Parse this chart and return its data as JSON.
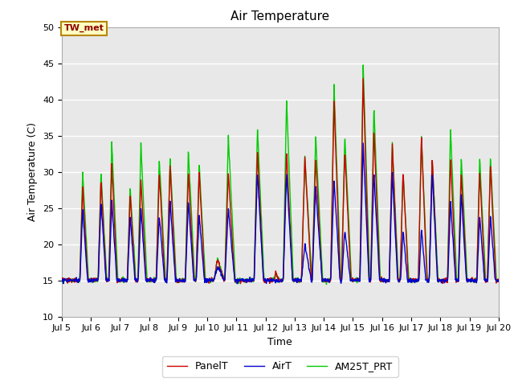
{
  "title": "Air Temperature",
  "xlabel": "Time",
  "ylabel": "Air Temperature (C)",
  "ylim": [
    10,
    50
  ],
  "xlim_days": [
    5,
    20
  ],
  "annotation_text": "TW_met",
  "annotation_color": "#8B0000",
  "annotation_bg": "#FFFFC0",
  "annotation_border": "#B8860B",
  "bg_color": "#E8E8E8",
  "grid_color": "#FFFFFF",
  "legend": [
    "PanelT",
    "AirT",
    "AM25T_PRT"
  ],
  "line_colors": [
    "#CC0000",
    "#0000CC",
    "#00CC00"
  ],
  "xtick_labels": [
    "Jul 5",
    "Jul 6",
    "Jul 7",
    "Jul 8",
    "Jul 9",
    "Jul 10",
    "Jul 11",
    "Jul 12",
    "Jul 13",
    "Jul 14",
    "Jul 15",
    "Jul 16",
    "Jul 17",
    "Jul 18",
    "Jul 19",
    "Jul 20"
  ],
  "xtick_positions": [
    5,
    6,
    7,
    8,
    9,
    10,
    11,
    12,
    13,
    14,
    15,
    16,
    17,
    18,
    19,
    20
  ],
  "ytick_positions": [
    10,
    15,
    20,
    25,
    30,
    35,
    40,
    45,
    50
  ],
  "title_fontsize": 11,
  "axis_fontsize": 9,
  "tick_fontsize": 8,
  "legend_fontsize": 9,
  "linewidth": 1.0
}
